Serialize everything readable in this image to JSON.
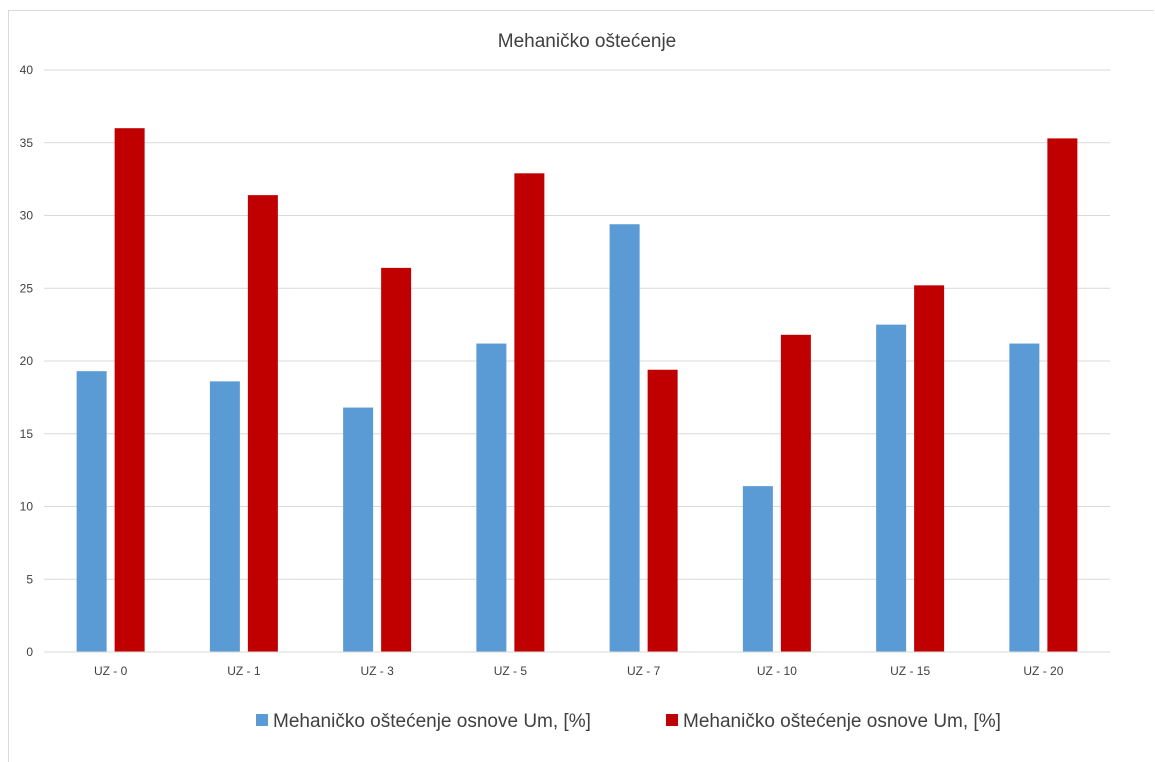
{
  "chart_data": {
    "type": "bar",
    "title": "Mehaničko oštećenje",
    "xlabel": "",
    "ylabel": "",
    "ylim": [
      0,
      40
    ],
    "yticks": [
      0,
      5,
      10,
      15,
      20,
      25,
      30,
      35,
      40
    ],
    "categories": [
      "UZ - 0",
      "UZ - 1",
      "UZ - 3",
      "UZ - 5",
      "UZ - 7",
      "UZ - 10",
      "UZ - 15",
      "UZ - 20"
    ],
    "series": [
      {
        "name": "Mehaničko oštećenje osnove Um, [%]",
        "color": "#5b9bd5",
        "values": [
          19.3,
          18.6,
          16.8,
          21.2,
          29.4,
          11.4,
          22.5,
          21.2
        ]
      },
      {
        "name": "Mehaničko oštećenje osnove Um, [%]",
        "color": "#c00000",
        "values": [
          36.0,
          31.4,
          26.4,
          32.9,
          19.4,
          21.8,
          25.2,
          35.3
        ]
      }
    ],
    "grid": true,
    "legend_position": "bottom"
  }
}
